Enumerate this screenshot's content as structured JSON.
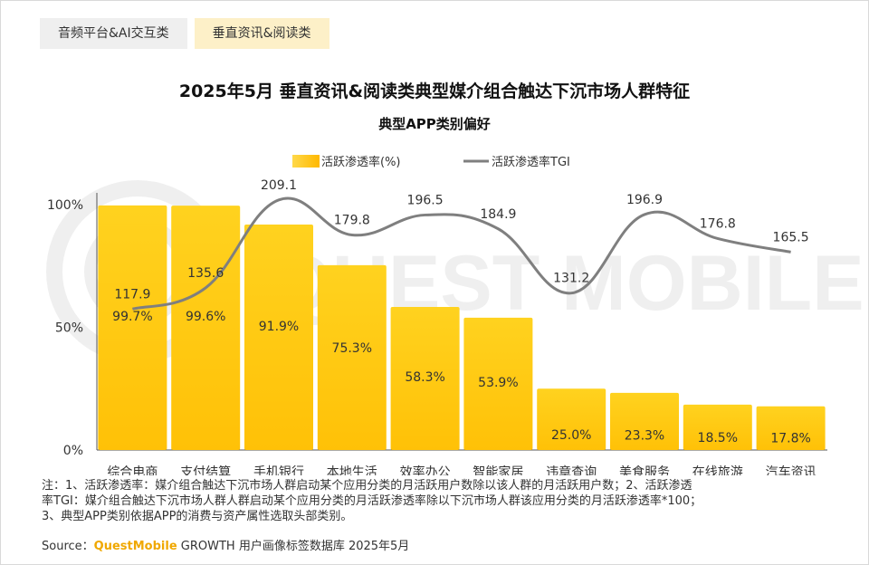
{
  "tabs": [
    {
      "label": "音频平台&AI交互类",
      "active": false
    },
    {
      "label": "垂直资讯&阅读类",
      "active": true
    }
  ],
  "title": "2025年5月 垂直资讯&阅读类典型媒介组合触达下沉市场人群特征",
  "subtitle": "典型APP类别偏好",
  "watermark": "QUEST MOBILE",
  "notes": [
    "注：1、活跃渗透率：媒介组合触达下沉市场人群启动某个应用分类的月活跃用户数除以该人群的月活跃用户数；2、活跃渗透",
    "率TGI：媒介组合触达下沉市场人群人群启动某个应用分类的月活跃渗透率除以下沉市场人群该应用分类的月活跃渗透率*100；",
    "3、典型APP类别依据APP的消费与资产属性选取头部类别。"
  ],
  "source": {
    "prefix": "Source：",
    "brand": "QuestMobile",
    "rest": " GROWTH 用户画像标签数据库 2025年5月"
  },
  "colors": {
    "bar": "#ffc510",
    "bar_light": "#ffd94a",
    "line": "#7f7f7f",
    "brand": "#f0a800"
  },
  "chart_data": {
    "type": "bar",
    "categories": [
      "综合电商",
      "支付结算",
      "手机银行",
      "本地生活",
      "效率办公",
      "智能家居",
      "违章查询",
      "美食服务",
      "在线旅游",
      "汽车资讯"
    ],
    "series": [
      {
        "name": "活跃渗透率(%)",
        "type": "bar",
        "values": [
          99.7,
          99.6,
          91.9,
          75.3,
          58.3,
          53.9,
          25.0,
          23.3,
          18.5,
          17.8
        ],
        "labels": [
          "99.7%",
          "99.6%",
          "91.9%",
          "75.3%",
          "58.3%",
          "53.9%",
          "25.0%",
          "23.3%",
          "18.5%",
          "17.8%"
        ]
      },
      {
        "name": "活跃渗透率TGI",
        "type": "line",
        "values": [
          117.9,
          135.6,
          209.1,
          179.8,
          196.5,
          184.9,
          131.2,
          196.9,
          176.8,
          165.5
        ],
        "labels": [
          "117.9",
          "135.6",
          "209.1",
          "179.8",
          "196.5",
          "184.9",
          "131.2",
          "196.9",
          "176.8",
          "165.5"
        ]
      }
    ],
    "ylim": [
      0,
      100
    ],
    "yticks": [
      "0%",
      "50%",
      "100%"
    ],
    "legend": "top-center"
  }
}
